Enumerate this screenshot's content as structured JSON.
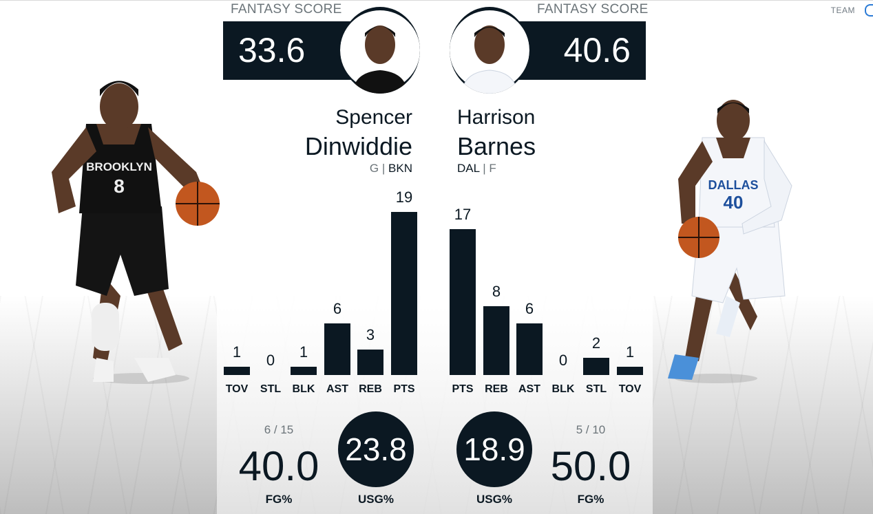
{
  "header": {
    "team_link": "TEAM"
  },
  "left_player": {
    "fantasy_label": "FANTASY SCORE",
    "fantasy_score": "33.6",
    "first_name": "Spencer",
    "last_name": "Dinwiddie",
    "position": "G",
    "separator": "|",
    "team": "BKN",
    "jersey_text": "BROOKLYN",
    "jersey_number": "8",
    "jersey_color": "#111111",
    "stats": [
      {
        "label": "TOV",
        "value": 1
      },
      {
        "label": "STL",
        "value": 0
      },
      {
        "label": "BLK",
        "value": 1
      },
      {
        "label": "AST",
        "value": 6
      },
      {
        "label": "REB",
        "value": 3
      },
      {
        "label": "PTS",
        "value": 19
      }
    ],
    "fg_attempts": "6 / 15",
    "fg_pct": "40.0",
    "fg_label": "FG%",
    "usg": "23.8",
    "usg_label": "USG%"
  },
  "right_player": {
    "fantasy_label": "FANTASY SCORE",
    "fantasy_score": "40.6",
    "first_name": "Harrison",
    "last_name": "Barnes",
    "team": "DAL",
    "separator": "|",
    "position": "F",
    "jersey_text": "DALLAS",
    "jersey_number": "40",
    "jersey_color": "#f4f6fa",
    "stats": [
      {
        "label": "PTS",
        "value": 17
      },
      {
        "label": "REB",
        "value": 8
      },
      {
        "label": "AST",
        "value": 6
      },
      {
        "label": "BLK",
        "value": 0
      },
      {
        "label": "STL",
        "value": 2
      },
      {
        "label": "TOV",
        "value": 1
      }
    ],
    "fg_attempts": "5 / 10",
    "fg_pct": "50.0",
    "fg_label": "FG%",
    "usg": "18.9",
    "usg_label": "USG%"
  },
  "colors": {
    "dark": "#0b1822",
    "muted": "#6b7479",
    "accent": "#2b7bd6"
  }
}
